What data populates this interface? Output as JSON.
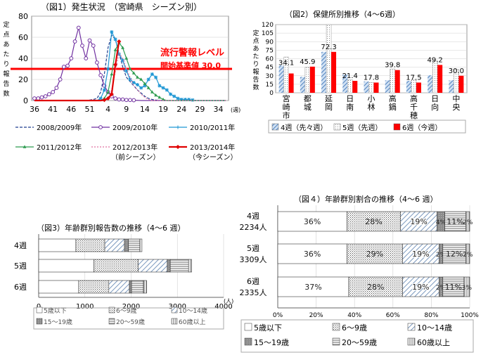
{
  "chart_data": [
    {
      "type": "line",
      "title": "（図1）発生状況　（宮崎県　シーズン別）",
      "ylabel": "定点あたり報告数",
      "xlabel": "(週)",
      "ylim": [
        0,
        80
      ],
      "y_ticks": [
        "0",
        "20",
        "40",
        "60",
        "80"
      ],
      "x_ticks": [
        "36",
        "41",
        "46",
        "51",
        "4",
        "9",
        "14",
        "19",
        "24",
        "29",
        "34"
      ],
      "annotations": [
        "流行警報レベル",
        "開始基準値 30.0"
      ],
      "threshold": 30,
      "x": [
        36,
        37,
        38,
        39,
        40,
        41,
        42,
        43,
        44,
        45,
        46,
        47,
        48,
        49,
        50,
        51,
        52,
        53,
        1,
        2,
        3,
        4,
        5,
        6,
        7,
        8,
        9,
        10,
        11,
        12,
        13,
        14,
        15,
        16,
        17,
        18,
        19,
        20,
        21,
        22,
        23,
        24,
        25,
        26,
        27,
        28,
        29,
        30,
        31,
        32,
        33,
        34,
        35
      ],
      "series": [
        {
          "name": "2008/2009年",
          "color": "#1f3f8f",
          "values": [
            0,
            0,
            0,
            0,
            0,
            0,
            0,
            0,
            0,
            0,
            0,
            0,
            0,
            0,
            0,
            0.5,
            1,
            2,
            8,
            25,
            50,
            62,
            58,
            45,
            32,
            22,
            18,
            14,
            10,
            7,
            4,
            2,
            1,
            0.5,
            0.2,
            0,
            0,
            0,
            0,
            0,
            0,
            0,
            0,
            0,
            0,
            0,
            0,
            0,
            0,
            0,
            0,
            0,
            0
          ]
        },
        {
          "name": "2009/2010年",
          "color": "#7030a0",
          "values": [
            2,
            2,
            3,
            4,
            6,
            8,
            12,
            20,
            32,
            33,
            40,
            56,
            69,
            52,
            40,
            57,
            52,
            36,
            24,
            14,
            8,
            4,
            2,
            1,
            1,
            0.5,
            0.5,
            0.3,
            0.2,
            0,
            0,
            0,
            0,
            0,
            0,
            0,
            0,
            0,
            0,
            0,
            0,
            0,
            0,
            0,
            0,
            0,
            0,
            0,
            0,
            0,
            0,
            0,
            0
          ]
        },
        {
          "name": "2010/2011年",
          "color": "#1f97d4",
          "values": [
            0,
            0,
            0,
            0,
            0,
            0,
            0,
            0,
            0,
            0,
            0,
            0,
            0,
            0,
            0,
            0,
            0,
            0,
            2,
            10,
            30,
            65,
            58,
            44,
            38,
            28,
            20,
            17,
            15,
            12,
            14,
            20,
            25,
            22,
            14,
            12,
            10,
            6,
            4,
            2,
            1,
            1,
            1,
            0.5,
            0,
            0,
            0,
            0,
            0,
            0,
            0,
            0,
            0
          ]
        },
        {
          "name": "2011/2012年",
          "color": "#2e9c50",
          "values": [
            0,
            0,
            0,
            0,
            0,
            0,
            0,
            0,
            0,
            0,
            0,
            0,
            0,
            0,
            0,
            0,
            0,
            0,
            0,
            2,
            8,
            25,
            48,
            55,
            50,
            40,
            30,
            26,
            22,
            20,
            16,
            12,
            8,
            5,
            3,
            1,
            0,
            0,
            0,
            0,
            0,
            0,
            0,
            0,
            0,
            0,
            0,
            0,
            0,
            0,
            0,
            0,
            0
          ]
        },
        {
          "name": "2012/2013年\n（前シーズン）",
          "color": "#e070a0",
          "values": [
            0,
            0,
            0,
            0,
            0,
            0,
            0,
            0,
            0,
            0,
            0,
            0,
            0,
            0,
            0,
            0,
            0,
            0,
            0,
            0,
            2,
            10,
            28,
            45,
            40,
            30,
            22,
            14,
            10,
            6,
            3,
            1,
            0,
            0,
            0,
            0,
            0,
            0,
            0,
            0,
            0,
            0,
            0,
            0,
            0,
            0,
            0,
            0,
            0,
            0,
            0,
            0,
            0
          ]
        },
        {
          "name": "2013/2014年\n（今シーズン）",
          "color": "#e00000",
          "values": [
            0,
            0,
            0,
            0,
            0,
            0,
            0,
            0,
            0,
            0,
            0,
            0,
            0,
            0,
            0,
            0,
            0,
            0,
            0,
            0.5,
            2,
            6,
            34,
            56,
            null,
            null,
            null,
            null,
            null,
            null,
            null,
            null,
            null,
            null,
            null,
            null,
            null,
            null,
            null,
            null,
            null,
            null,
            null,
            null,
            null,
            null,
            null,
            null,
            null,
            null,
            null,
            null,
            null
          ]
        }
      ]
    },
    {
      "type": "bar",
      "title": "（図2）保健所別推移（4～6週）",
      "ylabel": "定点あたり報告数",
      "ylim": [
        0,
        120
      ],
      "y_ticks": [
        "0",
        "15",
        "30",
        "45",
        "60",
        "75",
        "90",
        "105",
        "120"
      ],
      "categories": [
        "宮崎市",
        "都城",
        "延岡",
        "日南",
        "小林",
        "高鍋",
        "高千穂",
        "日向",
        "中央"
      ],
      "series": [
        {
          "name": "4週（先々週）",
          "color": "#4f81bd",
          "pattern": "hatch",
          "values": [
            48,
            28,
            72,
            32,
            20,
            22,
            21,
            31,
            22
          ]
        },
        {
          "name": "5週（先週）",
          "color": "#ffffff",
          "pattern": "dots",
          "values": [
            63,
            45,
            120,
            23,
            18,
            42,
            23,
            57,
            41
          ]
        },
        {
          "name": "6週（今週）",
          "color": "#ff0000",
          "pattern": "solid",
          "values": [
            34,
            46,
            72,
            21,
            18,
            40,
            18,
            49,
            30
          ]
        }
      ],
      "data_labels": [
        "34.1",
        "45.9",
        "72.3",
        "21.4",
        "17.8",
        "39.8",
        "17.5",
        "49.2",
        "30.0"
      ]
    },
    {
      "type": "bar",
      "orientation": "horizontal",
      "stacked": true,
      "title": "（図3）年齢群別報告数の推移（4～6 週）",
      "xlabel": "(人)",
      "xlim": [
        0,
        4000
      ],
      "x_ticks": [
        "0",
        "1000",
        "2000",
        "3000",
        "4000"
      ],
      "categories": [
        "4週",
        "5週",
        "6週"
      ],
      "series": [
        {
          "name": "5歳以下",
          "values": [
            804,
            1191,
            864
          ]
        },
        {
          "name": "6～9歳",
          "values": [
            626,
            960,
            654
          ]
        },
        {
          "name": "10～14歳",
          "values": [
            424,
            629,
            444
          ]
        },
        {
          "name": "15～19歳",
          "values": [
            89,
            66,
            47
          ]
        },
        {
          "name": "20～59歳",
          "values": [
            246,
            397,
            257
          ]
        },
        {
          "name": "60歳以上",
          "values": [
            45,
            66,
            69
          ]
        }
      ]
    },
    {
      "type": "bar",
      "orientation": "horizontal",
      "stacked": true,
      "percent": true,
      "title": "（図４）年齢群別割合の推移（4～6 週）",
      "xlim": [
        0,
        100
      ],
      "x_ticks": [
        "0%",
        "20%",
        "40%",
        "60%",
        "80%",
        "100%"
      ],
      "categories": [
        "4週\n2234人",
        "5週\n3309人",
        "6週\n2335人"
      ],
      "series": [
        {
          "name": "5歳以下",
          "values": [
            36,
            36,
            37
          ],
          "labels": [
            "36%",
            "36%",
            "37%"
          ]
        },
        {
          "name": "6～9歳",
          "values": [
            28,
            29,
            28
          ],
          "labels": [
            "28%",
            "29%",
            "28%"
          ]
        },
        {
          "name": "10～14歳",
          "values": [
            19,
            19,
            19
          ],
          "labels": [
            "19%",
            "19%",
            "19%"
          ]
        },
        {
          "name": "15～19歳",
          "values": [
            4,
            2,
            2
          ],
          "labels": [
            "4%",
            "2%",
            "2%"
          ]
        },
        {
          "name": "20～59歳",
          "values": [
            11,
            12,
            11
          ],
          "labels": [
            "11%",
            "12%",
            "11%"
          ]
        },
        {
          "name": "60歳以上",
          "values": [
            2,
            2,
            3
          ],
          "labels": [
            "2%",
            "2%",
            "3%"
          ]
        }
      ]
    }
  ]
}
